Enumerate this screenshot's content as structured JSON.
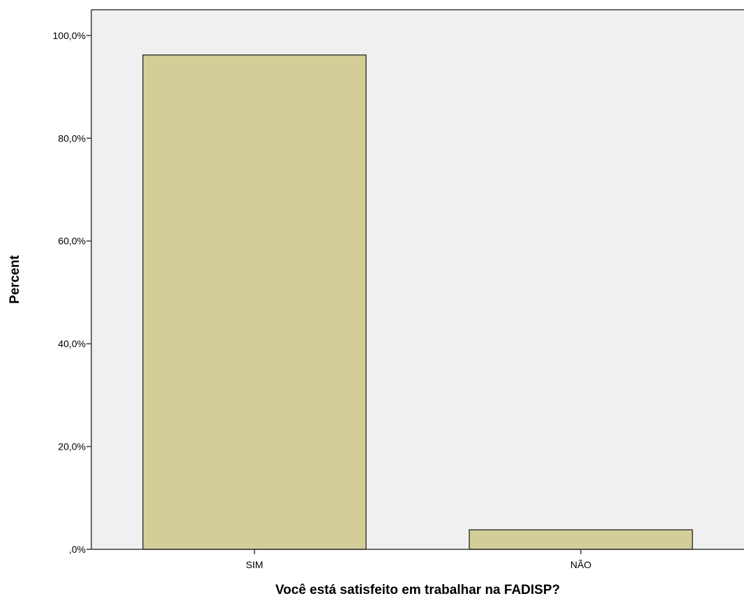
{
  "chart_data": {
    "type": "bar",
    "categories": [
      "SIM",
      "NÃO"
    ],
    "values": [
      96.2,
      3.8
    ],
    "title": "",
    "xlabel": "Você está satisfeito em trabalhar na FADISP?",
    "ylabel": "Percent",
    "ylim": [
      0,
      105
    ],
    "yticks": [
      0,
      20,
      40,
      60,
      80,
      100
    ],
    "ytick_labels": [
      ",0%",
      "20,0%",
      "40,0%",
      "60,0%",
      "80,0%",
      "100,0%"
    ],
    "grid": false,
    "legend": "none",
    "colors": {
      "plot_background": "#f0f0f0",
      "bar_fill": "#d3ce97",
      "bar_stroke": "#3c3c3c",
      "axis": "#3c3c3c"
    }
  }
}
